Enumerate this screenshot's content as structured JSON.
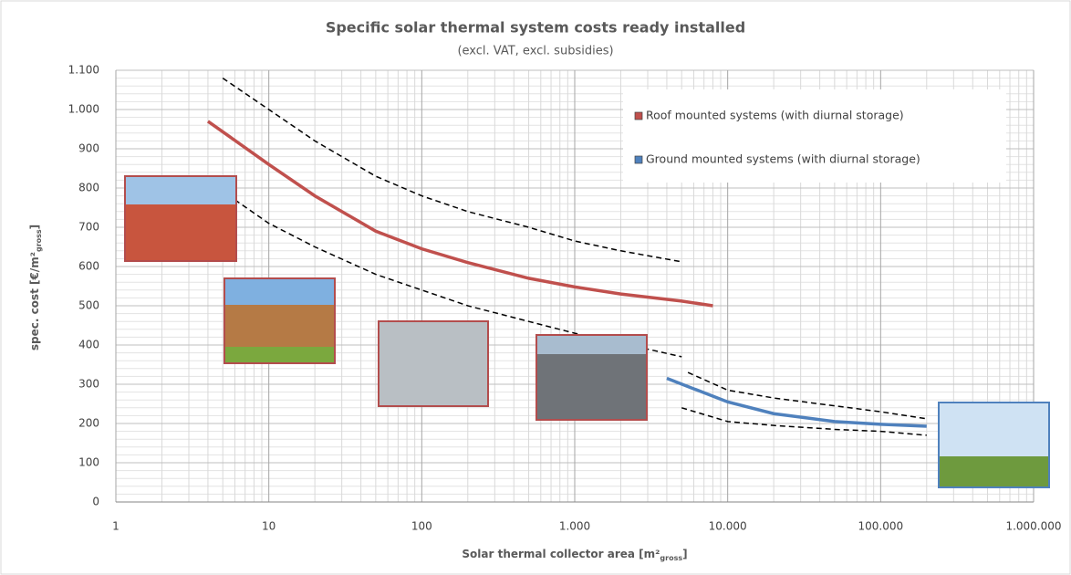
{
  "chart_data": {
    "type": "line",
    "title": "Specific solar thermal system costs ready installed",
    "subtitle": "(excl. VAT, excl. subsidies)",
    "xlabel": [
      "Solar thermal collector area [m²",
      "gross",
      "]"
    ],
    "ylabel": [
      "spec. cost [€/m²",
      "gross",
      "]"
    ],
    "xscale": "log",
    "xlim": [
      1,
      1000000
    ],
    "xticks": [
      1,
      10,
      100,
      {
        "value": 1000,
        "label": "1.000"
      },
      {
        "value": 10000,
        "label": "10.000"
      },
      {
        "value": 100000,
        "label": "100.000"
      },
      {
        "value": 1000000,
        "label": "1.000.000"
      }
    ],
    "ylim": [
      0,
      1100
    ],
    "yticks": [
      0,
      100,
      200,
      300,
      400,
      500,
      600,
      700,
      800,
      900,
      {
        "value": 1000,
        "label": "1.000"
      },
      {
        "value": 1100,
        "label": "1.100"
      }
    ],
    "grid": true,
    "legend": "upper right",
    "series": [
      {
        "name": "Roof mounted systems (with diurnal storage)",
        "color": "#c0504d",
        "x": [
          4,
          10,
          20,
          50,
          100,
          200,
          500,
          1000,
          2000,
          5000,
          8000
        ],
        "values": [
          970,
          860,
          780,
          690,
          645,
          610,
          570,
          548,
          530,
          512,
          500
        ]
      },
      {
        "color": "#000000",
        "dash": true,
        "x": [
          5,
          10,
          20,
          50,
          100,
          200,
          500,
          1000,
          2000,
          5000
        ],
        "values": [
          1080,
          1000,
          920,
          830,
          780,
          740,
          700,
          665,
          640,
          612
        ]
      },
      {
        "color": "#000000",
        "dash": true,
        "x": [
          6,
          10,
          20,
          50,
          100,
          200,
          500,
          1000,
          2000,
          5000
        ],
        "values": [
          770,
          710,
          650,
          580,
          540,
          500,
          460,
          430,
          405,
          370
        ]
      },
      {
        "name": "Ground mounted systems (with diurnal storage)",
        "color": "#4f81bd",
        "x": [
          4000,
          10000,
          20000,
          50000,
          100000,
          200000
        ],
        "values": [
          315,
          255,
          225,
          205,
          198,
          193
        ]
      },
      {
        "color": "#000000",
        "dash": true,
        "x": [
          5500,
          10000,
          20000,
          50000,
          100000,
          200000
        ],
        "values": [
          330,
          285,
          265,
          245,
          230,
          212
        ]
      },
      {
        "color": "#000000",
        "dash": true,
        "x": [
          5000,
          10000,
          20000,
          50000,
          100000,
          200000
        ],
        "values": [
          240,
          205,
          195,
          185,
          180,
          170
        ]
      }
    ]
  }
}
